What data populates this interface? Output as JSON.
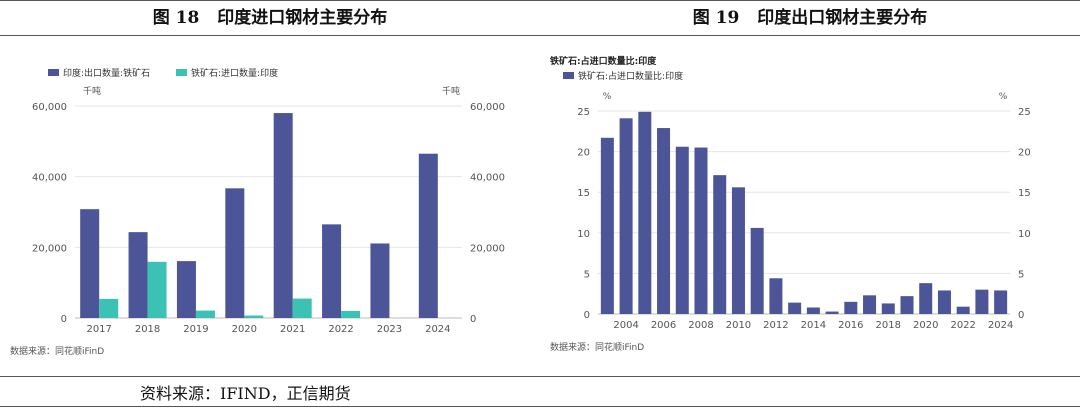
{
  "figures": {
    "fig18": {
      "number": "图 18",
      "title": "印度进口钢材主要分布"
    },
    "fig19": {
      "number": "图 19",
      "title": "印度出口钢材主要分布"
    }
  },
  "footer": {
    "source": "资料来源：IFIND，正信期货"
  },
  "chart_data": [
    {
      "type": "bar",
      "title": "",
      "unit_left": "千吨",
      "unit_right": "千吨",
      "categories": [
        "2017",
        "2018",
        "2019",
        "2020",
        "2021",
        "2022",
        "2023",
        "2024"
      ],
      "series": [
        {
          "name": "印度:出口数量:铁矿石",
          "color": "#4b5597",
          "values": [
            30800,
            24300,
            16100,
            36700,
            58000,
            26500,
            21100,
            46500
          ]
        },
        {
          "name": "铁矿石:进口数量:印度",
          "color": "#3cc2b4",
          "values": [
            5400,
            15900,
            2100,
            700,
            5500,
            2000,
            0,
            0
          ]
        }
      ],
      "ylim": [
        0,
        60000
      ],
      "yticks": [
        "0",
        "20,000",
        "40,000",
        "60,000"
      ],
      "ytick_values": [
        0,
        20000,
        40000,
        60000
      ],
      "legend": "top-left",
      "source_note": "数据来源：同花顺iFinD"
    },
    {
      "type": "bar",
      "title": "铁矿石:占进口数量比:印度",
      "unit_left": "%",
      "unit_right": "%",
      "categories": [
        "2003",
        "2004",
        "2005",
        "2006",
        "2007",
        "2008",
        "2009",
        "2010",
        "2011",
        "2012",
        "2013",
        "2014",
        "2015",
        "2016",
        "2017",
        "2018",
        "2019",
        "2020",
        "2021",
        "2022",
        "2023",
        "2024"
      ],
      "xtick_labels": [
        "2004",
        "2006",
        "2008",
        "2010",
        "2012",
        "2014",
        "2016",
        "2018",
        "2020",
        "2022",
        "2024"
      ],
      "series": [
        {
          "name": "铁矿石:占进口数量比:印度",
          "color": "#4b5597",
          "values": [
            21.7,
            24.1,
            24.9,
            22.9,
            20.6,
            20.5,
            17.1,
            15.6,
            10.6,
            4.4,
            1.4,
            0.8,
            0.3,
            1.5,
            2.3,
            1.3,
            2.2,
            3.8,
            2.9,
            0.9,
            3.0,
            2.9
          ]
        }
      ],
      "ylim": [
        0,
        25
      ],
      "yticks": [
        "0",
        "5",
        "10",
        "15",
        "20",
        "25"
      ],
      "ytick_values": [
        0,
        5,
        10,
        15,
        20,
        25
      ],
      "legend": "top-left",
      "source_note": "数据来源：同花顺iFinD"
    }
  ]
}
